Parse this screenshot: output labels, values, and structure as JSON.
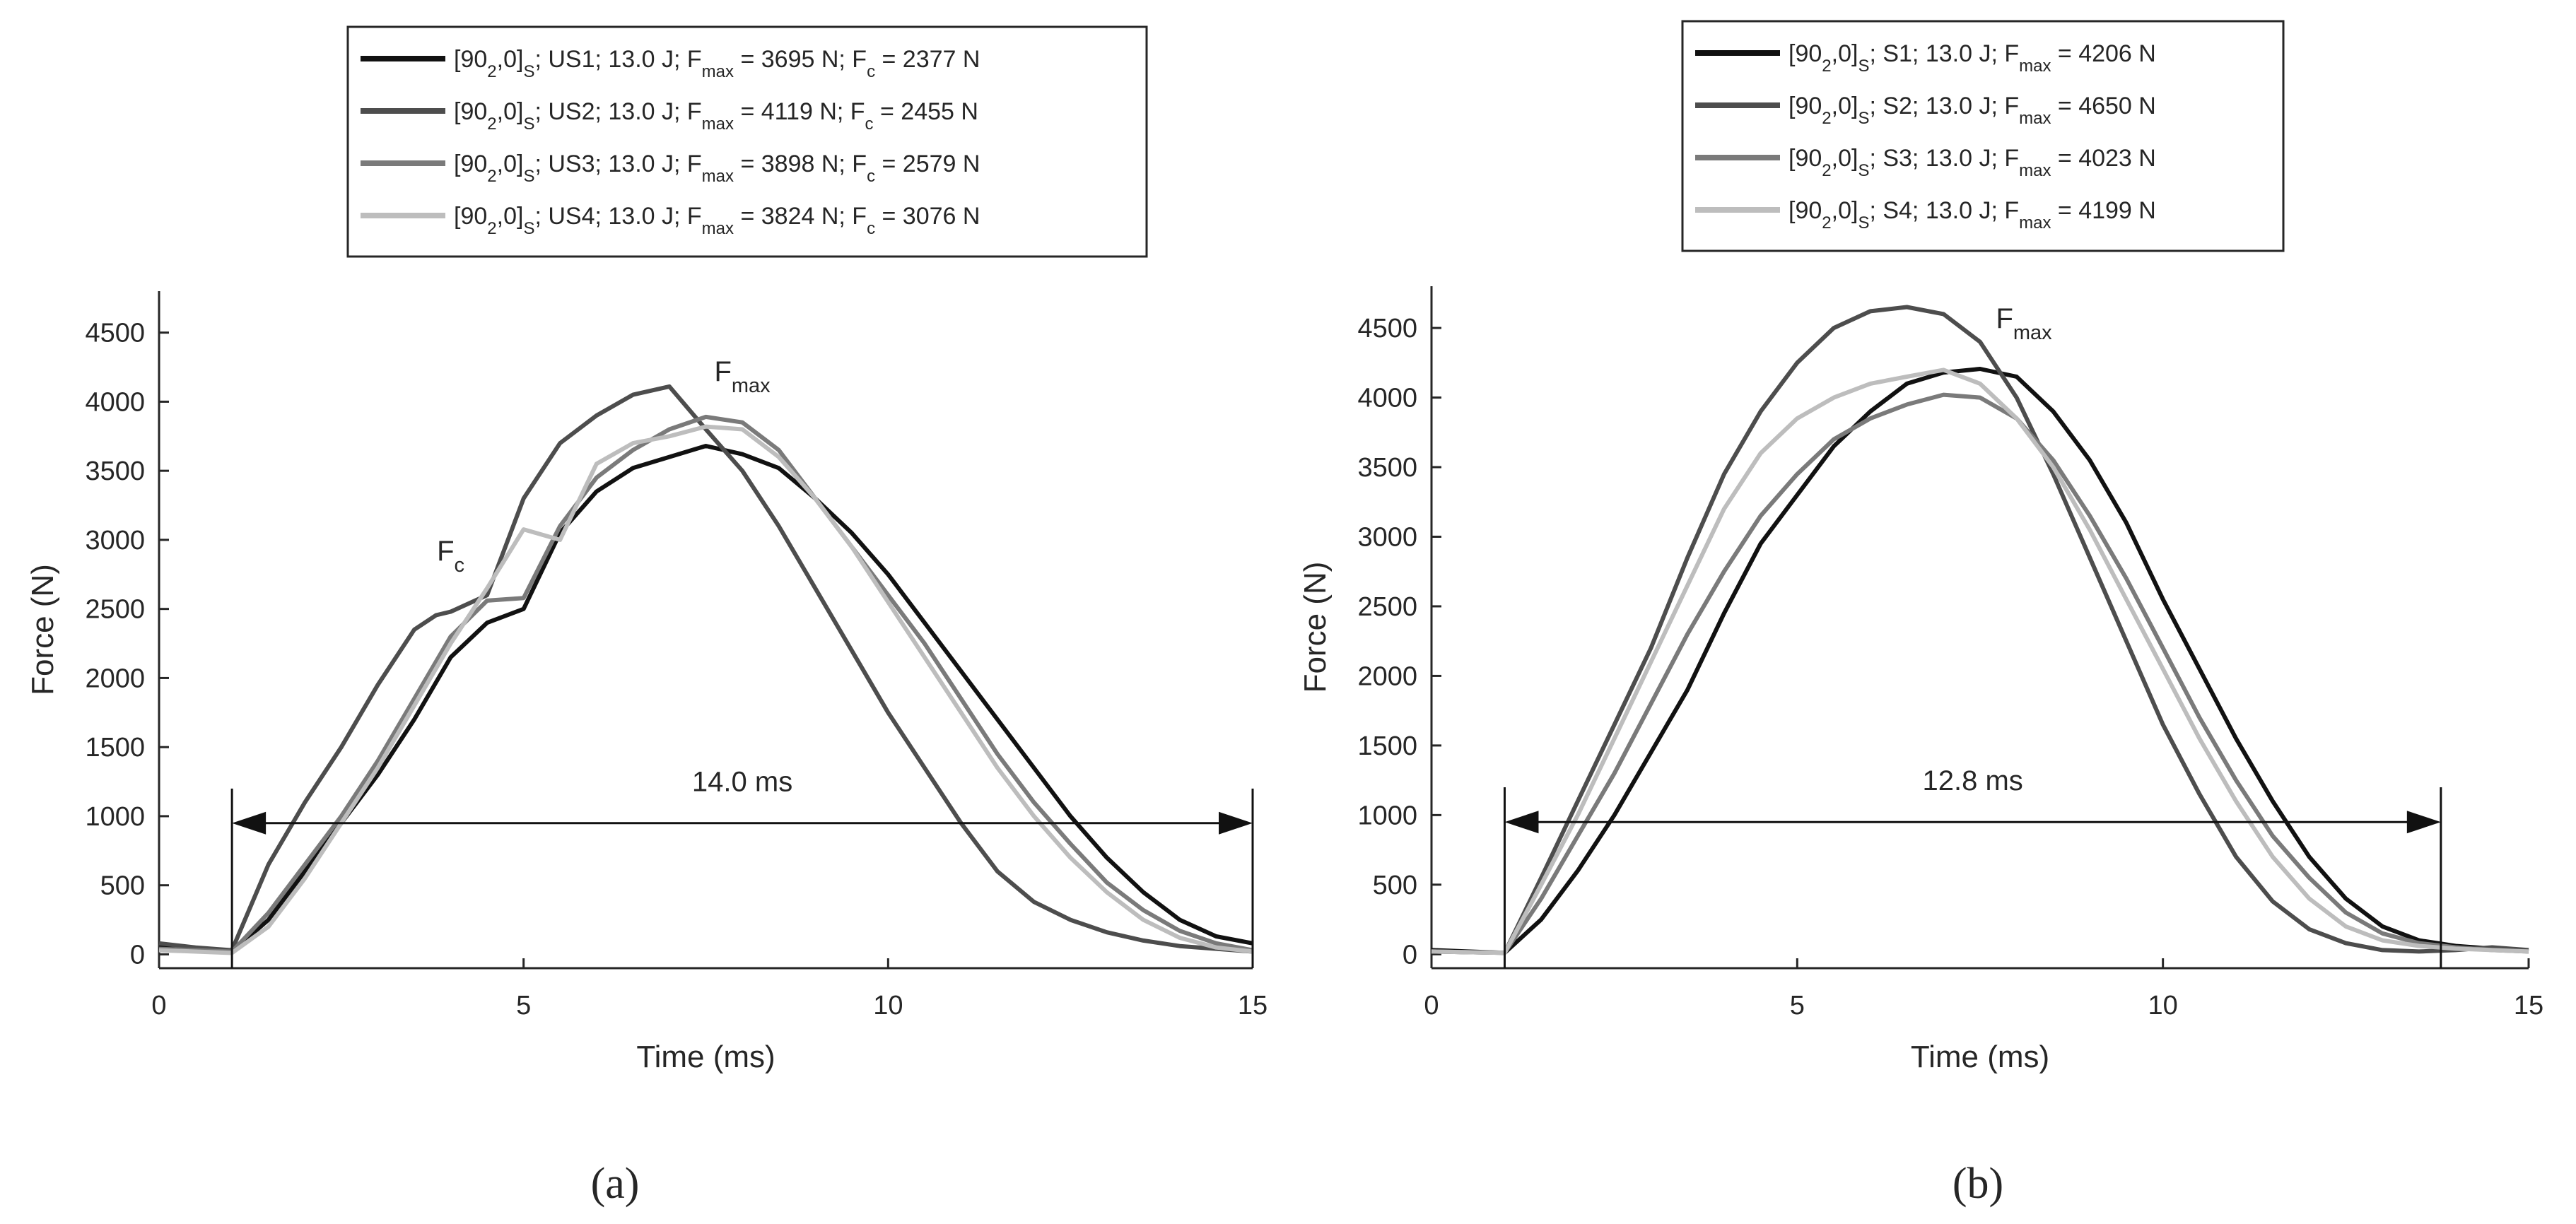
{
  "chart_data": [
    {
      "type": "line",
      "panel_label": "(a)",
      "xlabel": "Time (ms)",
      "ylabel": "Force (N)",
      "xlim": [
        0,
        15
      ],
      "ylim": [
        -100,
        4800
      ],
      "xticks": [
        0,
        5,
        10,
        15
      ],
      "yticks": [
        0,
        500,
        1000,
        1500,
        2000,
        2500,
        3000,
        3500,
        4000,
        4500
      ],
      "grid": false,
      "legend_position": "top-center, above axes",
      "series": [
        {
          "name": "US1",
          "label": {
            "pre": "[90",
            "sub1": "2",
            "mid": ",0]",
            "sub2": "S",
            "post": "; US1; 13.0 J; F",
            "sub3": "max",
            "post2": " = 3695 N; F",
            "sub4": "c",
            "post3": " = 2377 N"
          },
          "color": "#111111",
          "x": [
            0,
            0.5,
            1.0,
            1.5,
            2.0,
            2.5,
            3.0,
            3.5,
            4.0,
            4.5,
            5.0,
            5.5,
            6.0,
            6.5,
            7.0,
            7.5,
            8.0,
            8.5,
            9.0,
            9.5,
            10.0,
            10.5,
            11.0,
            11.5,
            12.0,
            12.5,
            13.0,
            13.5,
            14.0,
            14.5,
            15.0
          ],
          "y": [
            60,
            40,
            20,
            250,
            600,
            950,
            1300,
            1700,
            2150,
            2400,
            2500,
            3050,
            3350,
            3520,
            3600,
            3680,
            3620,
            3520,
            3300,
            3050,
            2750,
            2400,
            2050,
            1700,
            1350,
            1000,
            700,
            450,
            250,
            130,
            80
          ]
        },
        {
          "name": "US2",
          "label": {
            "pre": "[90",
            "sub1": "2",
            "mid": ",0]",
            "sub2": "S",
            "post": "; US2; 13.0 J; F",
            "sub3": "max",
            "post2": " = 4119 N; F",
            "sub4": "c",
            "post3": " = 2455 N"
          },
          "color": "#4d4d4d",
          "x": [
            0,
            0.5,
            1.0,
            1.5,
            2.0,
            2.5,
            3.0,
            3.5,
            3.8,
            4.0,
            4.5,
            5.0,
            5.5,
            6.0,
            6.5,
            7.0,
            7.5,
            8.0,
            8.5,
            9.0,
            9.5,
            10.0,
            10.5,
            11.0,
            11.5,
            12.0,
            12.5,
            13.0,
            13.5,
            14.0,
            14.5,
            15.0
          ],
          "y": [
            80,
            50,
            30,
            650,
            1100,
            1500,
            1950,
            2350,
            2455,
            2480,
            2600,
            3300,
            3700,
            3900,
            4050,
            4110,
            3800,
            3500,
            3100,
            2650,
            2200,
            1750,
            1350,
            950,
            600,
            380,
            250,
            160,
            100,
            60,
            40,
            20
          ]
        },
        {
          "name": "US3",
          "label": {
            "pre": "[90",
            "sub1": "2",
            "mid": ",0]",
            "sub2": "S",
            "post": "; US3; 13.0 J; F",
            "sub3": "max",
            "post2": " = 3898 N; F",
            "sub4": "c",
            "post3": " = 2579 N"
          },
          "color": "#7a7a7a",
          "x": [
            0,
            0.5,
            1.0,
            1.5,
            2.0,
            2.5,
            3.0,
            3.5,
            4.0,
            4.5,
            5.0,
            5.5,
            6.0,
            6.5,
            7.0,
            7.5,
            8.0,
            8.5,
            9.0,
            9.5,
            10.0,
            10.5,
            11.0,
            11.5,
            12.0,
            12.5,
            13.0,
            13.5,
            14.0,
            14.5,
            15.0
          ],
          "y": [
            40,
            30,
            20,
            300,
            650,
            1000,
            1400,
            1850,
            2300,
            2560,
            2579,
            3100,
            3450,
            3650,
            3800,
            3890,
            3850,
            3650,
            3300,
            2950,
            2600,
            2250,
            1850,
            1450,
            1100,
            800,
            520,
            320,
            170,
            80,
            30
          ]
        },
        {
          "name": "US4",
          "label": {
            "pre": "[90",
            "sub1": "2",
            "mid": ",0]",
            "sub2": "S",
            "post": "; US4; 13.0 J; F",
            "sub3": "max",
            "post2": " = 3824 N; F",
            "sub4": "c",
            "post3": " = 3076 N"
          },
          "color": "#bdbdbd",
          "x": [
            0,
            0.5,
            1.0,
            1.5,
            2.0,
            2.5,
            3.0,
            3.5,
            4.0,
            4.5,
            5.0,
            5.5,
            6.0,
            6.5,
            7.0,
            7.5,
            8.0,
            8.5,
            9.0,
            9.5,
            10.0,
            10.5,
            11.0,
            11.5,
            12.0,
            12.5,
            13.0,
            13.5,
            14.0,
            14.5,
            15.0
          ],
          "y": [
            30,
            20,
            10,
            200,
            550,
            950,
            1350,
            1800,
            2250,
            2650,
            3076,
            3000,
            3550,
            3700,
            3750,
            3820,
            3800,
            3600,
            3300,
            2950,
            2550,
            2150,
            1750,
            1350,
            1000,
            700,
            450,
            250,
            120,
            50,
            20
          ]
        }
      ],
      "annotations": [
        {
          "text": "F",
          "sub": "c",
          "x": 4.0,
          "y": 2850
        },
        {
          "text": "F",
          "sub": "max",
          "x": 8.0,
          "y": 4150
        },
        {
          "text": "14.0 ms",
          "x1": 1.0,
          "x2": 15.0,
          "y": 950,
          "line_top": 1200
        }
      ]
    },
    {
      "type": "line",
      "panel_label": "(b)",
      "xlabel": "Time (ms)",
      "ylabel": "Force (N)",
      "xlim": [
        0,
        15
      ],
      "ylim": [
        -100,
        4800
      ],
      "xticks": [
        0,
        5,
        10,
        15
      ],
      "yticks": [
        0,
        500,
        1000,
        1500,
        2000,
        2500,
        3000,
        3500,
        4000,
        4500
      ],
      "grid": false,
      "legend_position": "top-center, above axes",
      "series": [
        {
          "name": "S1",
          "label": {
            "pre": "[90",
            "sub1": "2",
            "mid": ",0]",
            "sub2": "S",
            "post": "; S1; 13.0 J; F",
            "sub3": "max",
            "post2": " = 4206 N"
          },
          "color": "#111111",
          "x": [
            0,
            0.5,
            1.0,
            1.5,
            2.0,
            2.5,
            3.0,
            3.5,
            4.0,
            4.5,
            5.0,
            5.5,
            6.0,
            6.5,
            7.0,
            7.5,
            8.0,
            8.5,
            9.0,
            9.5,
            10.0,
            10.5,
            11.0,
            11.5,
            12.0,
            12.5,
            13.0,
            13.5,
            14.0,
            14.5,
            15.0
          ],
          "y": [
            30,
            20,
            10,
            250,
            600,
            1000,
            1450,
            1900,
            2450,
            2950,
            3300,
            3650,
            3900,
            4100,
            4180,
            4206,
            4150,
            3900,
            3550,
            3100,
            2550,
            2050,
            1550,
            1100,
            700,
            400,
            200,
            100,
            60,
            40,
            20
          ]
        },
        {
          "name": "S2",
          "label": {
            "pre": "[90",
            "sub1": "2",
            "mid": ",0]",
            "sub2": "S",
            "post": "; S2; 13.0 J; F",
            "sub3": "max",
            "post2": " = 4650 N"
          },
          "color": "#4d4d4d",
          "x": [
            0,
            0.5,
            1.0,
            1.5,
            2.0,
            2.5,
            3.0,
            3.5,
            4.0,
            4.5,
            5.0,
            5.5,
            6.0,
            6.5,
            7.0,
            7.5,
            8.0,
            8.5,
            9.0,
            9.5,
            10.0,
            10.5,
            11.0,
            11.5,
            12.0,
            12.5,
            13.0,
            13.5,
            14.0,
            14.5,
            15.0
          ],
          "y": [
            20,
            15,
            10,
            550,
            1100,
            1650,
            2200,
            2850,
            3450,
            3900,
            4250,
            4500,
            4620,
            4650,
            4600,
            4400,
            4000,
            3450,
            2850,
            2250,
            1650,
            1150,
            700,
            380,
            180,
            80,
            30,
            20,
            30,
            50,
            30
          ]
        },
        {
          "name": "S3",
          "label": {
            "pre": "[90",
            "sub1": "2",
            "mid": ",0]",
            "sub2": "S",
            "post": "; S3; 13.0 J; F",
            "sub3": "max",
            "post2": " = 4023 N"
          },
          "color": "#7a7a7a",
          "x": [
            0,
            0.5,
            1.0,
            1.5,
            2.0,
            2.5,
            3.0,
            3.5,
            4.0,
            4.5,
            5.0,
            5.5,
            6.0,
            6.5,
            7.0,
            7.5,
            8.0,
            8.5,
            9.0,
            9.5,
            10.0,
            10.5,
            11.0,
            11.5,
            12.0,
            12.5,
            13.0,
            13.5,
            14.0,
            14.5,
            15.0
          ],
          "y": [
            20,
            15,
            10,
            400,
            850,
            1300,
            1800,
            2300,
            2750,
            3150,
            3450,
            3700,
            3850,
            3950,
            4020,
            4000,
            3850,
            3550,
            3150,
            2700,
            2200,
            1700,
            1250,
            850,
            550,
            300,
            150,
            80,
            50,
            30,
            20
          ]
        },
        {
          "name": "S4",
          "label": {
            "pre": "[90",
            "sub1": "2",
            "mid": ",0]",
            "sub2": "S",
            "post": "; S4; 13.0 J; F",
            "sub3": "max",
            "post2": " = 4199 N"
          },
          "color": "#bdbdbd",
          "x": [
            0,
            0.5,
            1.0,
            1.5,
            2.0,
            2.5,
            3.0,
            3.5,
            4.0,
            4.5,
            5.0,
            5.5,
            6.0,
            6.5,
            7.0,
            7.5,
            8.0,
            8.5,
            9.0,
            9.5,
            10.0,
            10.5,
            11.0,
            11.5,
            12.0,
            12.5,
            13.0,
            13.5,
            14.0,
            14.5,
            15.0
          ],
          "y": [
            20,
            15,
            10,
            500,
            1000,
            1550,
            2100,
            2650,
            3200,
            3600,
            3850,
            4000,
            4100,
            4150,
            4199,
            4100,
            3850,
            3500,
            3050,
            2550,
            2050,
            1550,
            1100,
            700,
            400,
            200,
            100,
            60,
            40,
            30,
            20
          ]
        }
      ],
      "annotations": [
        {
          "text": "F",
          "sub": "max",
          "x": 8.1,
          "y": 4500
        },
        {
          "text": "12.8 ms",
          "x1": 1.0,
          "x2": 13.8,
          "y": 950,
          "line_top": 1200
        }
      ]
    }
  ]
}
